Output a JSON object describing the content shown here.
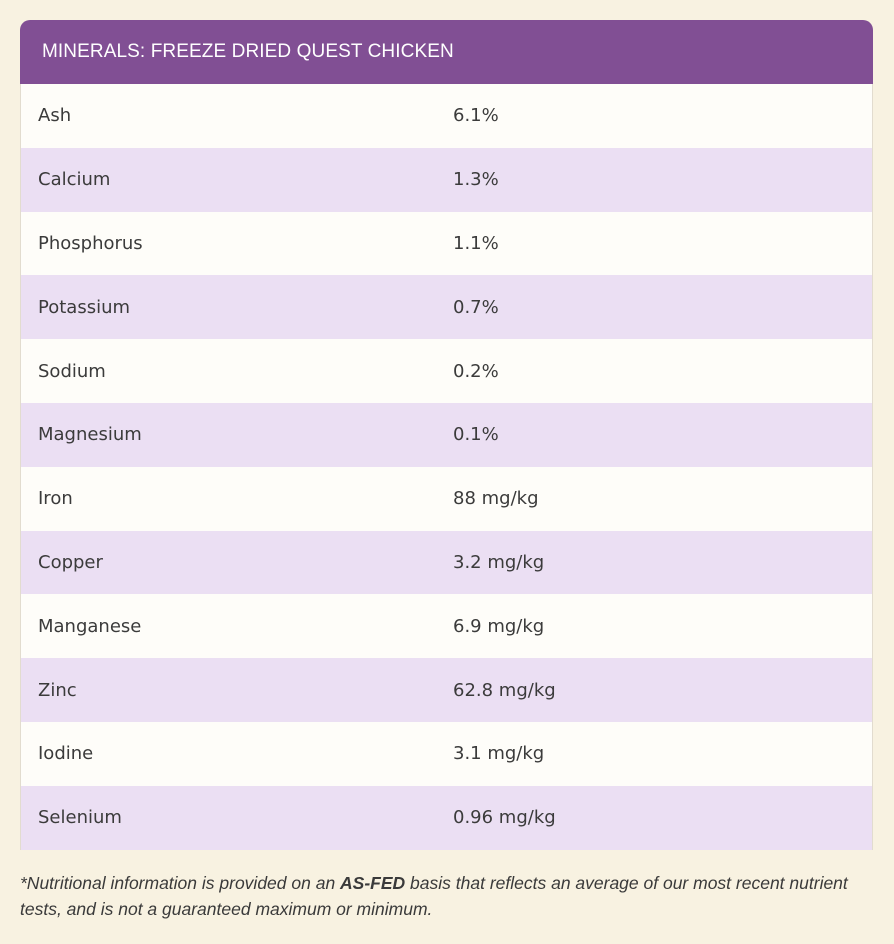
{
  "table": {
    "title": "MINERALS: FREEZE DRIED QUEST CHICKEN",
    "rows": [
      {
        "name": "Ash",
        "value": "6.1%"
      },
      {
        "name": "Calcium",
        "value": "1.3%"
      },
      {
        "name": "Phosphorus",
        "value": "1.1%"
      },
      {
        "name": "Potassium",
        "value": "0.7%"
      },
      {
        "name": "Sodium",
        "value": "0.2%"
      },
      {
        "name": "Magnesium",
        "value": "0.1%"
      },
      {
        "name": "Iron",
        "value": "88 mg/kg"
      },
      {
        "name": "Copper",
        "value": "3.2 mg/kg"
      },
      {
        "name": "Manganese",
        "value": "6.9 mg/kg"
      },
      {
        "name": "Zinc",
        "value": "62.8 mg/kg"
      },
      {
        "name": "Iodine",
        "value": "3.1 mg/kg"
      },
      {
        "name": "Selenium",
        "value": "0.96 mg/kg"
      }
    ]
  },
  "footnote": {
    "prefix": "*Nutritional information is provided on an ",
    "emphasis": "AS-FED",
    "suffix": " basis that reflects an average of our most recent nutrient tests, and is not a guaranteed maximum or minimum."
  },
  "colors": {
    "page_background": "#f8f2e1",
    "header_background": "#814f94",
    "row_light": "#fefdf9",
    "row_purple": "#ebdff3"
  }
}
